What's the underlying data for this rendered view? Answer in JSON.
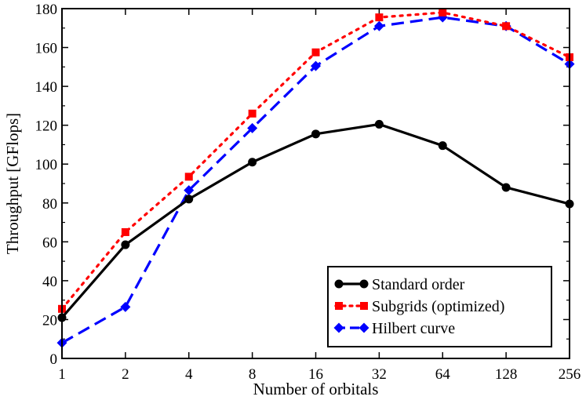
{
  "chart_data": {
    "type": "line",
    "xlabel": "Number of orbitals",
    "ylabel": "Throughput [GFlops]",
    "x_scale": "log2",
    "categories": [
      "1",
      "2",
      "4",
      "8",
      "16",
      "32",
      "64",
      "128",
      "256"
    ],
    "x": [
      1,
      2,
      4,
      8,
      16,
      32,
      64,
      128,
      256
    ],
    "xlim": [
      1,
      256
    ],
    "ylim": [
      0,
      180
    ],
    "y_ticks": [
      0,
      20,
      40,
      60,
      80,
      100,
      120,
      140,
      160,
      180
    ],
    "grid": false,
    "legend_position": "bottom-right",
    "series": [
      {
        "name": "Standard order",
        "values": [
          21,
          58.5,
          82,
          101,
          115.5,
          120.5,
          109.5,
          88,
          79.5
        ],
        "color": "#000000",
        "line_style": "solid",
        "marker": "circle"
      },
      {
        "name": "Subgrids (optimized)",
        "values": [
          25.5,
          65,
          93.5,
          126,
          157.5,
          175.5,
          178,
          171,
          155
        ],
        "color": "#ff0000",
        "line_style": "dotted",
        "marker": "square"
      },
      {
        "name": "Hilbert curve",
        "values": [
          8,
          26.5,
          86.5,
          118.5,
          150.5,
          171,
          175.5,
          171,
          151.5
        ],
        "color": "#0000ff",
        "line_style": "dashed",
        "marker": "diamond"
      }
    ]
  }
}
